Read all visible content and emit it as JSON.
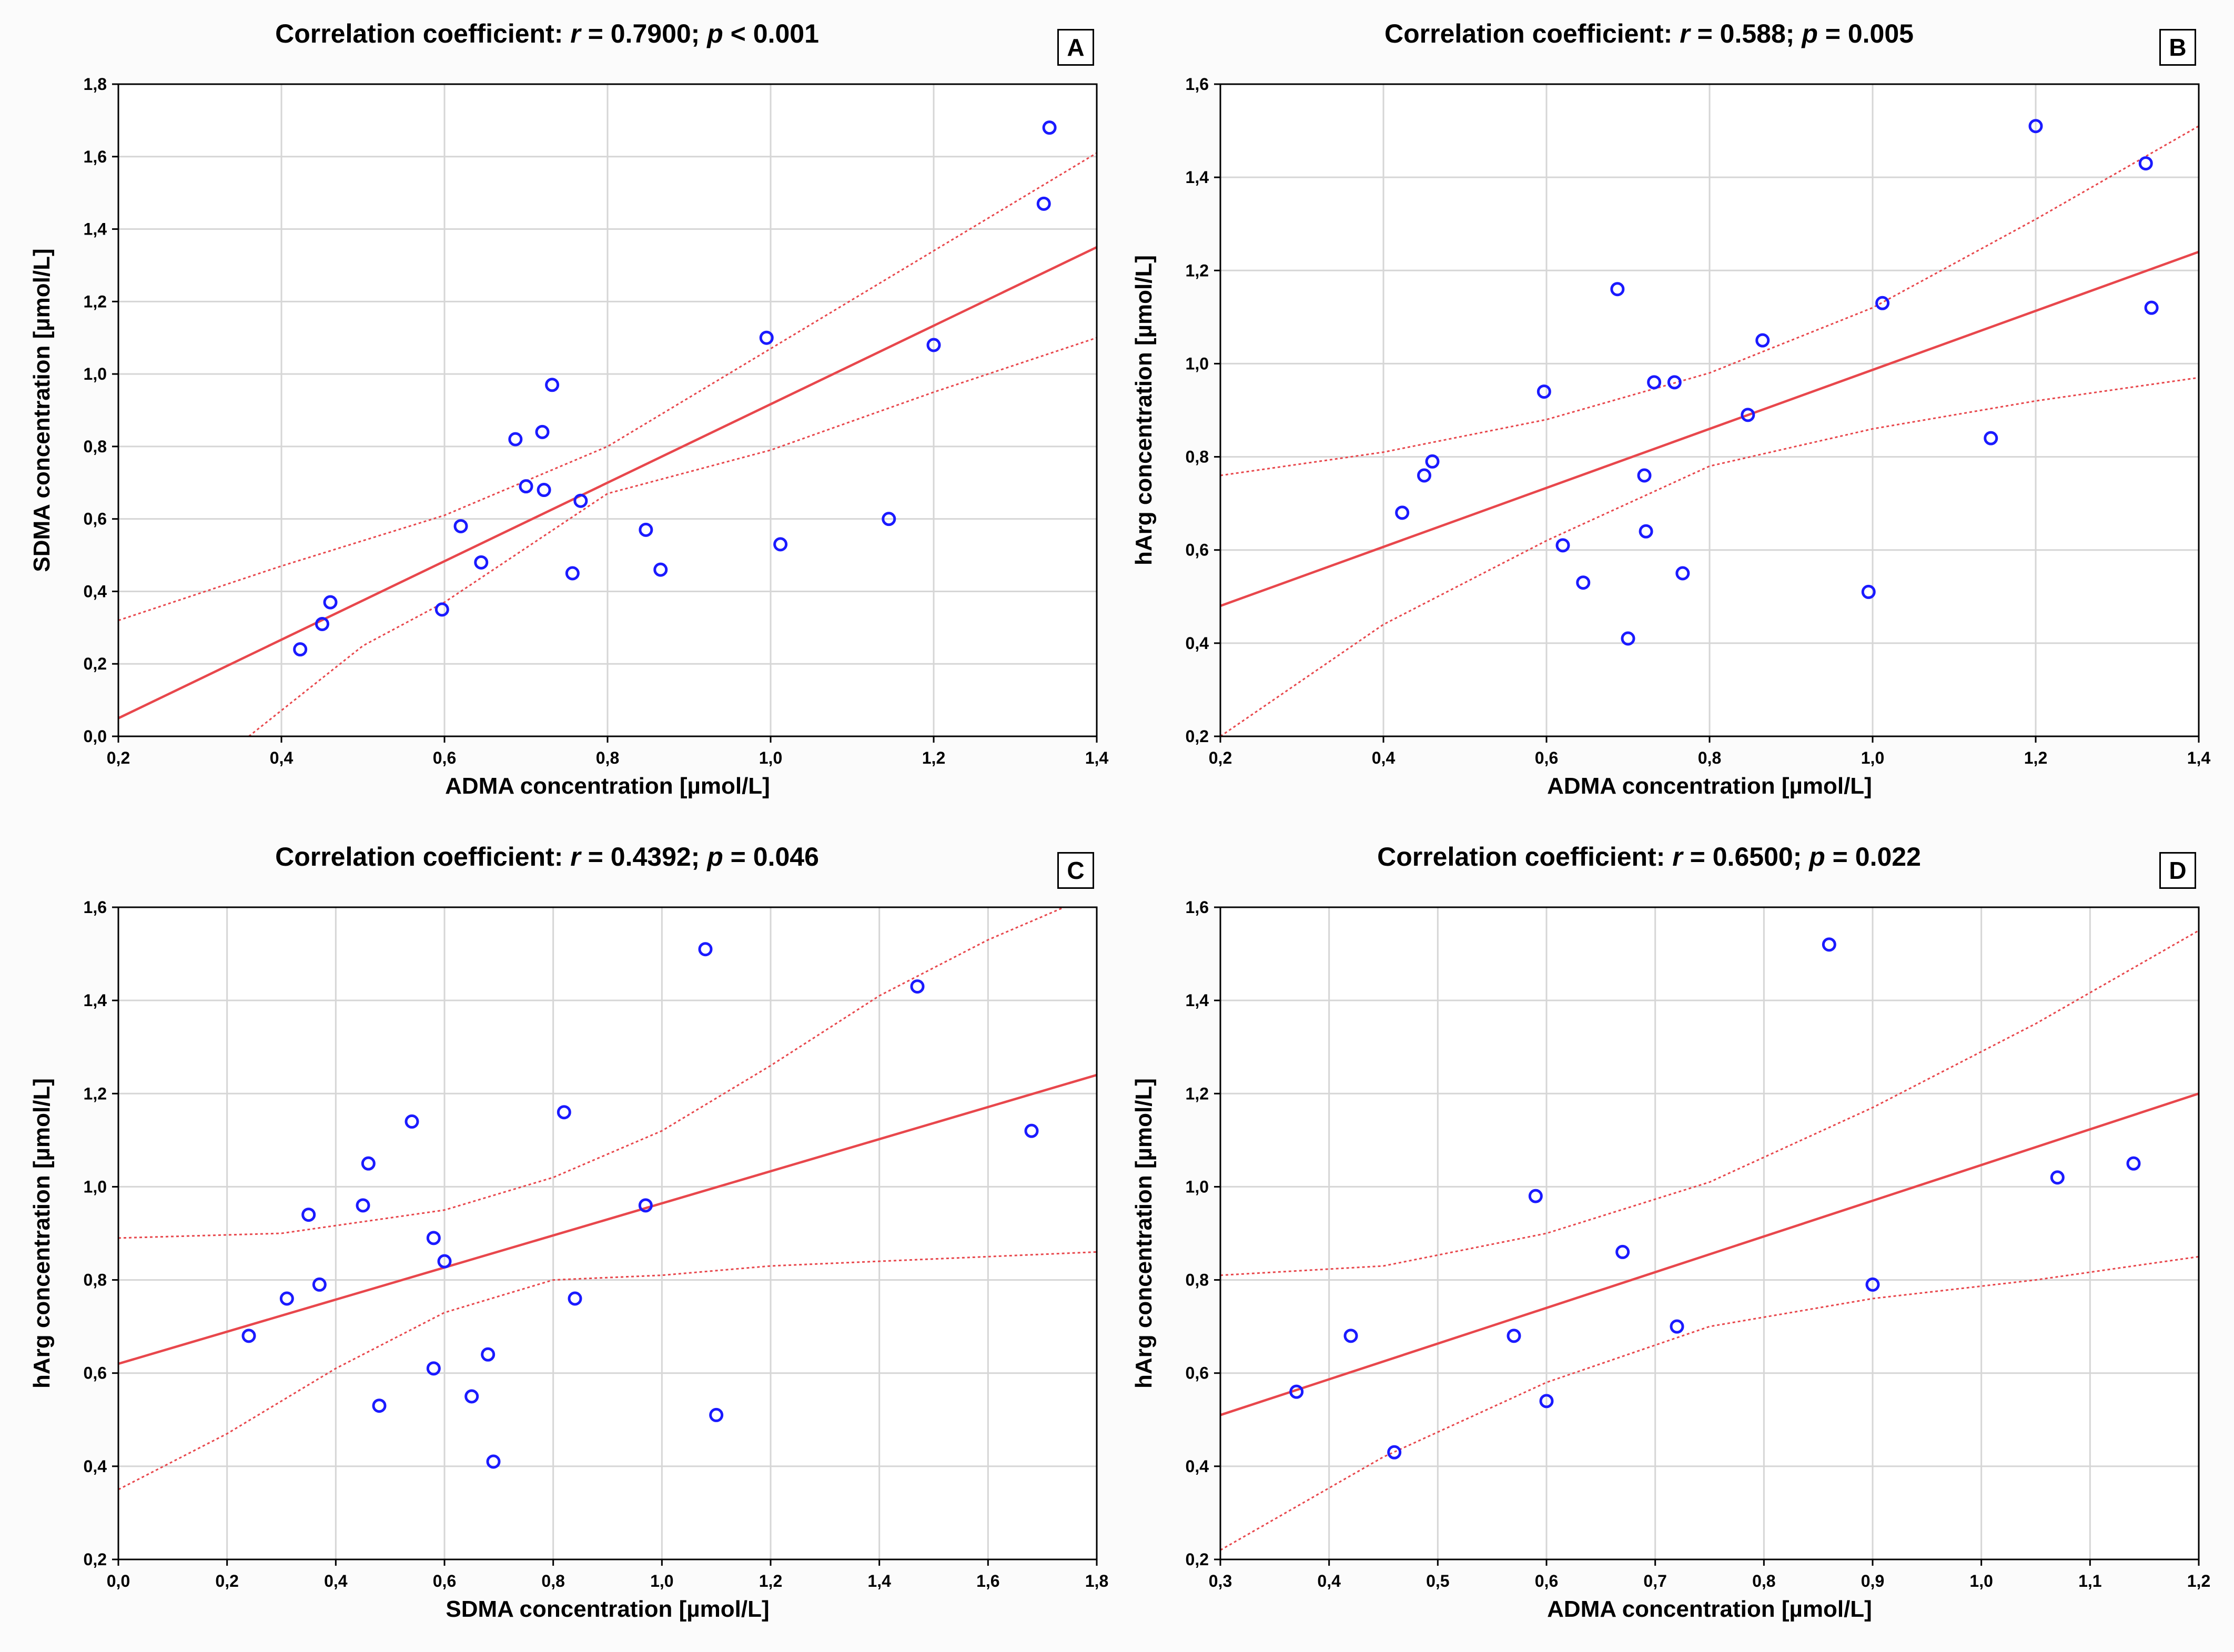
{
  "colors": {
    "point": "#1a1aff",
    "fit": "#e8474c",
    "grid": "#d6d6d6",
    "axis": "#000000",
    "plot_bg": "#ffffff"
  },
  "chart_data": [
    {
      "id": "A",
      "letter": "A",
      "type": "scatter",
      "title": {
        "prefix": "Correlation coefficient: ",
        "r_sym": "r",
        "r_val": " = 0.7900; ",
        "p_sym": "p",
        "p_val": " < 0.001"
      },
      "xlabel": "ADMA concentration [µmol/L]",
      "ylabel": "SDMA concentration [µmol/L]",
      "xlim": [
        0.2,
        1.4
      ],
      "ylim": [
        0.0,
        1.8
      ],
      "xticks": [
        "0,2",
        "0,4",
        "0,6",
        "0,8",
        "1,0",
        "1,2",
        "1,4"
      ],
      "yticks": [
        "0,0",
        "0,2",
        "0,4",
        "0,6",
        "0,8",
        "1,0",
        "1,2",
        "1,4",
        "1,6",
        "1,8"
      ],
      "points": [
        [
          0.423,
          0.24
        ],
        [
          0.45,
          0.31
        ],
        [
          0.46,
          0.37
        ],
        [
          0.597,
          0.35
        ],
        [
          0.62,
          0.58
        ],
        [
          0.645,
          0.48
        ],
        [
          0.687,
          0.82
        ],
        [
          0.7,
          0.69
        ],
        [
          0.72,
          0.84
        ],
        [
          0.722,
          0.68
        ],
        [
          0.732,
          0.97
        ],
        [
          0.757,
          0.45
        ],
        [
          0.767,
          0.65
        ],
        [
          0.847,
          0.57
        ],
        [
          0.865,
          0.46
        ],
        [
          0.995,
          1.1
        ],
        [
          1.012,
          0.53
        ],
        [
          1.145,
          0.6
        ],
        [
          1.2,
          1.08
        ],
        [
          1.335,
          1.47
        ],
        [
          1.342,
          1.68
        ]
      ],
      "fit": [
        [
          0.2,
          0.05
        ],
        [
          1.4,
          1.35
        ]
      ],
      "ci_upper": [
        [
          0.2,
          0.32
        ],
        [
          0.4,
          0.47
        ],
        [
          0.6,
          0.61
        ],
        [
          0.8,
          0.8
        ],
        [
          1.0,
          1.07
        ],
        [
          1.2,
          1.34
        ],
        [
          1.4,
          1.61
        ]
      ],
      "ci_lower": [
        [
          0.36,
          0.0
        ],
        [
          0.5,
          0.25
        ],
        [
          0.6,
          0.37
        ],
        [
          0.8,
          0.67
        ],
        [
          1.0,
          0.79
        ],
        [
          1.2,
          0.95
        ],
        [
          1.4,
          1.1
        ]
      ]
    },
    {
      "id": "B",
      "letter": "B",
      "type": "scatter",
      "title": {
        "prefix": "Correlation coefficient: ",
        "r_sym": "r",
        "r_val": " = 0.588; ",
        "p_sym": "p",
        "p_val": " = 0.005"
      },
      "xlabel": "ADMA concentration [µmol/L]",
      "ylabel": "hArg concentration [µmol/L]",
      "xlim": [
        0.2,
        1.4
      ],
      "ylim": [
        0.2,
        1.6
      ],
      "xticks": [
        "0,2",
        "0,4",
        "0,6",
        "0,8",
        "1,0",
        "1,2",
        "1,4"
      ],
      "yticks": [
        "0,2",
        "0,4",
        "0,6",
        "0,8",
        "1,0",
        "1,2",
        "1,4",
        "1,6"
      ],
      "points": [
        [
          0.423,
          0.68
        ],
        [
          0.45,
          0.76
        ],
        [
          0.46,
          0.79
        ],
        [
          0.597,
          0.94
        ],
        [
          0.62,
          0.61
        ],
        [
          0.645,
          0.53
        ],
        [
          0.687,
          1.16
        ],
        [
          0.7,
          0.41
        ],
        [
          0.72,
          0.76
        ],
        [
          0.722,
          0.64
        ],
        [
          0.732,
          0.96
        ],
        [
          0.757,
          0.96
        ],
        [
          0.767,
          0.55
        ],
        [
          0.847,
          0.89
        ],
        [
          0.865,
          1.05
        ],
        [
          0.995,
          0.51
        ],
        [
          1.012,
          1.13
        ],
        [
          1.145,
          0.84
        ],
        [
          1.2,
          1.51
        ],
        [
          1.335,
          1.43
        ],
        [
          1.342,
          1.12
        ]
      ],
      "fit": [
        [
          0.2,
          0.48
        ],
        [
          1.4,
          1.24
        ]
      ],
      "ci_upper": [
        [
          0.2,
          0.76
        ],
        [
          0.4,
          0.81
        ],
        [
          0.6,
          0.88
        ],
        [
          0.8,
          0.98
        ],
        [
          1.0,
          1.12
        ],
        [
          1.2,
          1.31
        ],
        [
          1.4,
          1.51
        ]
      ],
      "ci_lower": [
        [
          0.2,
          0.2
        ],
        [
          0.4,
          0.44
        ],
        [
          0.6,
          0.62
        ],
        [
          0.8,
          0.78
        ],
        [
          1.0,
          0.86
        ],
        [
          1.2,
          0.92
        ],
        [
          1.4,
          0.97
        ]
      ]
    },
    {
      "id": "C",
      "letter": "C",
      "type": "scatter",
      "title": {
        "prefix": "Correlation coefficient: ",
        "r_sym": "r",
        "r_val": " = 0.4392; ",
        "p_sym": "p",
        "p_val": " = 0.046"
      },
      "xlabel": "SDMA concentration [µmol/L]",
      "ylabel": "hArg concentration [µmol/L]",
      "xlim": [
        0.0,
        1.8
      ],
      "ylim": [
        0.2,
        1.6
      ],
      "xticks": [
        "0,0",
        "0,2",
        "0,4",
        "0,6",
        "0,8",
        "1,0",
        "1,2",
        "1,4",
        "1,6",
        "1,8"
      ],
      "yticks": [
        "0,2",
        "0,4",
        "0,6",
        "0,8",
        "1,0",
        "1,2",
        "1,4",
        "1,6"
      ],
      "points": [
        [
          0.24,
          0.68
        ],
        [
          0.31,
          0.76
        ],
        [
          0.35,
          0.94
        ],
        [
          0.37,
          0.79
        ],
        [
          0.45,
          0.96
        ],
        [
          0.46,
          1.05
        ],
        [
          0.48,
          0.53
        ],
        [
          0.54,
          1.14
        ],
        [
          0.58,
          0.89
        ],
        [
          0.58,
          0.61
        ],
        [
          0.6,
          0.84
        ],
        [
          0.65,
          0.55
        ],
        [
          0.68,
          0.64
        ],
        [
          0.69,
          0.41
        ],
        [
          0.82,
          1.16
        ],
        [
          0.84,
          0.76
        ],
        [
          0.97,
          0.96
        ],
        [
          1.08,
          1.51
        ],
        [
          1.1,
          0.51
        ],
        [
          1.47,
          1.43
        ],
        [
          1.68,
          1.12
        ]
      ],
      "fit": [
        [
          0.0,
          0.62
        ],
        [
          1.8,
          1.24
        ]
      ],
      "ci_upper": [
        [
          0.0,
          0.89
        ],
        [
          0.3,
          0.9
        ],
        [
          0.6,
          0.95
        ],
        [
          0.8,
          1.02
        ],
        [
          1.0,
          1.12
        ],
        [
          1.2,
          1.26
        ],
        [
          1.4,
          1.41
        ],
        [
          1.6,
          1.53
        ],
        [
          1.8,
          1.63
        ]
      ],
      "ci_lower": [
        [
          0.0,
          0.35
        ],
        [
          0.2,
          0.47
        ],
        [
          0.4,
          0.61
        ],
        [
          0.6,
          0.73
        ],
        [
          0.8,
          0.8
        ],
        [
          1.0,
          0.81
        ],
        [
          1.2,
          0.83
        ],
        [
          1.4,
          0.84
        ],
        [
          1.6,
          0.85
        ],
        [
          1.8,
          0.86
        ]
      ]
    },
    {
      "id": "D",
      "letter": "D",
      "type": "scatter",
      "title": {
        "prefix": "Correlation coefficient: ",
        "r_sym": "r",
        "r_val": " = 0.6500; ",
        "p_sym": "p",
        "p_val": " = 0.022"
      },
      "xlabel": "ADMA concentration [µmol/L]",
      "ylabel": "hArg concentration [µmol/L]",
      "xlim": [
        0.3,
        1.2
      ],
      "ylim": [
        0.2,
        1.6
      ],
      "xticks": [
        "0,3",
        "0,4",
        "0,5",
        "0,6",
        "0,7",
        "0,8",
        "0,9",
        "1,0",
        "1,1",
        "1,2"
      ],
      "yticks": [
        "0,2",
        "0,4",
        "0,6",
        "0,8",
        "1,0",
        "1,2",
        "1,4",
        "1,6"
      ],
      "points": [
        [
          0.37,
          0.56
        ],
        [
          0.42,
          0.68
        ],
        [
          0.46,
          0.43
        ],
        [
          0.57,
          0.68
        ],
        [
          0.59,
          0.98
        ],
        [
          0.6,
          0.54
        ],
        [
          0.67,
          0.86
        ],
        [
          0.72,
          0.7
        ],
        [
          0.86,
          1.52
        ],
        [
          0.9,
          0.79
        ],
        [
          1.07,
          1.02
        ],
        [
          1.14,
          1.05
        ]
      ],
      "fit": [
        [
          0.3,
          0.51
        ],
        [
          1.2,
          1.2
        ]
      ],
      "ci_upper": [
        [
          0.3,
          0.81
        ],
        [
          0.45,
          0.83
        ],
        [
          0.6,
          0.9
        ],
        [
          0.75,
          1.01
        ],
        [
          0.9,
          1.17
        ],
        [
          1.05,
          1.35
        ],
        [
          1.2,
          1.55
        ]
      ],
      "ci_lower": [
        [
          0.3,
          0.22
        ],
        [
          0.45,
          0.42
        ],
        [
          0.6,
          0.58
        ],
        [
          0.75,
          0.7
        ],
        [
          0.9,
          0.76
        ],
        [
          1.05,
          0.8
        ],
        [
          1.2,
          0.85
        ]
      ]
    }
  ]
}
